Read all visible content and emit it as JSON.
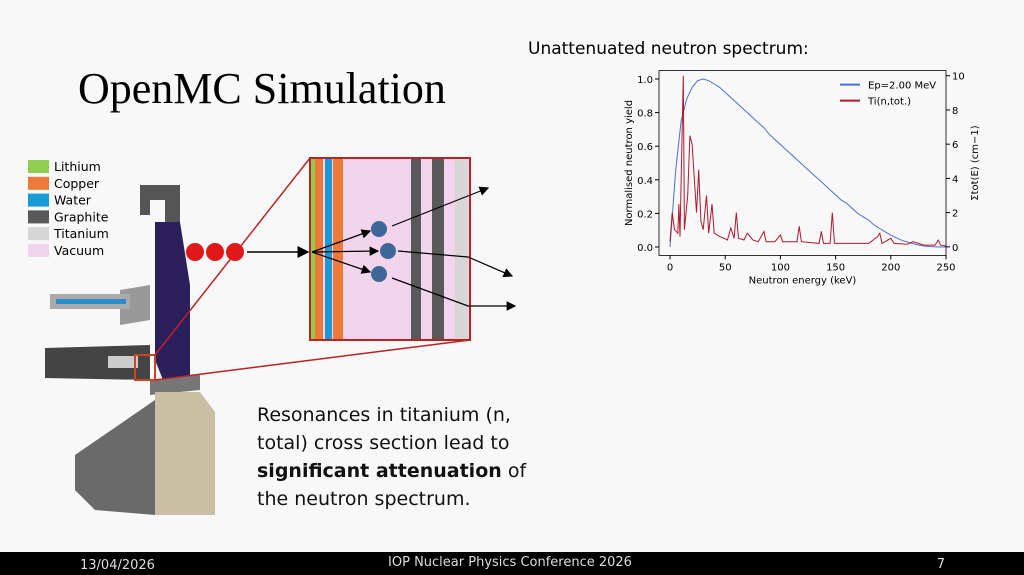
{
  "title": "OpenMC Simulation",
  "materials": [
    {
      "label": "Lithium",
      "color": "#8fce4f"
    },
    {
      "label": "Copper",
      "color": "#ee7a3a"
    },
    {
      "label": "Water",
      "color": "#1a9ad6"
    },
    {
      "label": "Graphite",
      "color": "#595959"
    },
    {
      "label": "Titanium",
      "color": "#d6d6d6"
    },
    {
      "label": "Vacuum",
      "color": "#f2d4ec"
    }
  ],
  "chart_caption": "Unattenuated neutron spectrum:",
  "chart_data": {
    "type": "line",
    "x_label": "Neutron energy (keV)",
    "y_label": "Normalised neutron yield",
    "y2_label": "Σtot(E) (cm−1)",
    "xlim": [
      -10,
      250
    ],
    "xticks": [
      0,
      50,
      100,
      150,
      200,
      250
    ],
    "ylim": [
      -0.05,
      1.05
    ],
    "yticks": [
      {
        "value": 0,
        "label": "0.0"
      },
      0.2,
      0.4,
      0.6,
      0.8,
      {
        "value": 1,
        "label": "1.0"
      }
    ],
    "y2lim": [
      -0.5,
      10.3
    ],
    "y2ticks": [
      0,
      2,
      4,
      6,
      8,
      10
    ],
    "legend": "upper right",
    "x": [
      0,
      5,
      10,
      15,
      20,
      25,
      30,
      35,
      40,
      45,
      50,
      55,
      60,
      65,
      70,
      75,
      80,
      85,
      90,
      95,
      100,
      105,
      110,
      115,
      120,
      125,
      130,
      135,
      140,
      145,
      150,
      155,
      160,
      165,
      170,
      175,
      180,
      185,
      190,
      195,
      200,
      205,
      210,
      215,
      220,
      225,
      230,
      235,
      240,
      245,
      250
    ],
    "series": [
      {
        "name": "Ep=2.00 MeV",
        "color": "#4a72d0",
        "values": [
          0.0,
          0.45,
          0.75,
          0.88,
          0.95,
          0.99,
          1.0,
          0.99,
          0.97,
          0.95,
          0.92,
          0.89,
          0.86,
          0.83,
          0.8,
          0.77,
          0.74,
          0.71,
          0.67,
          0.64,
          0.61,
          0.58,
          0.55,
          0.52,
          0.49,
          0.46,
          0.43,
          0.4,
          0.37,
          0.34,
          0.31,
          0.28,
          0.26,
          0.23,
          0.2,
          0.18,
          0.16,
          0.13,
          0.11,
          0.09,
          0.07,
          0.055,
          0.04,
          0.03,
          0.02,
          0.012,
          0.006,
          0.003,
          0.001,
          0,
          0
        ]
      },
      {
        "name": "Ti(n,tot.)",
        "color": "#b0182c",
        "axis": "y2",
        "x": [
          0,
          2,
          4,
          7,
          8,
          9,
          12,
          13,
          16,
          18,
          20,
          22,
          24,
          26,
          28,
          30,
          33,
          35,
          38,
          40,
          45,
          49,
          52,
          55,
          58,
          60,
          62,
          67,
          70,
          75,
          80,
          85,
          87,
          95,
          100,
          102,
          115,
          117,
          119,
          135,
          137,
          139,
          145,
          147,
          149,
          160,
          170,
          180,
          188,
          190,
          192,
          200,
          203,
          215,
          220,
          230,
          240,
          243,
          245,
          250
        ],
        "values": [
          0.3,
          2,
          1,
          0.8,
          2.5,
          0.6,
          10,
          1,
          3,
          6.5,
          6,
          4,
          2,
          4.5,
          1.5,
          1,
          3,
          0.8,
          2.5,
          0.8,
          0.6,
          0.5,
          0.4,
          1.1,
          0.5,
          2,
          0.5,
          0.4,
          0.8,
          0.4,
          0.3,
          0.9,
          0.3,
          0.3,
          0.7,
          0.3,
          0.3,
          1.2,
          0.3,
          0.2,
          0.9,
          0.2,
          0.2,
          2,
          0.2,
          0.2,
          0.2,
          0.2,
          0.6,
          0.8,
          0.2,
          0.5,
          0.2,
          0.15,
          0.3,
          0.1,
          0.1,
          0.4,
          0.1,
          0.05
        ]
      }
    ]
  },
  "body": [
    "Resonances in titanium (n, total) cross section lead to ",
    "significant attenuation",
    " of the neutron spectrum."
  ],
  "footer": {
    "date": "13/04/2026",
    "conference": "IOP Nuclear Physics Conference 2026",
    "page": "7"
  }
}
